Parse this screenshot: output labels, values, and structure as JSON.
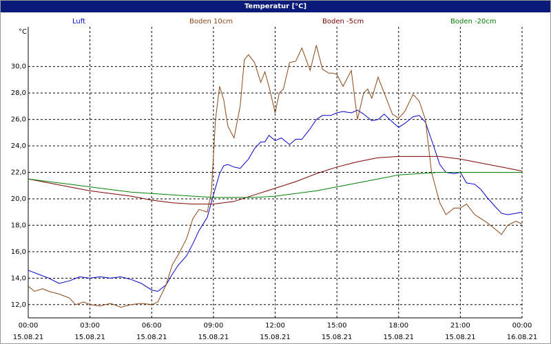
{
  "window": {
    "title": "Temperatur [°C]"
  },
  "chart_data": {
    "type": "line",
    "title": "Temperatur [°C]",
    "ylabel": "°C",
    "ylim": [
      11.0,
      33.0
    ],
    "yticks": [
      12,
      14,
      16,
      18,
      20,
      22,
      24,
      26,
      28,
      30
    ],
    "ytick_labels": [
      "12,0",
      "14,0",
      "16,0",
      "18,0",
      "20,0",
      "22,0",
      "24,0",
      "26,0",
      "28,0",
      "30,0"
    ],
    "xlim": [
      0,
      24
    ],
    "xticks": [
      0,
      3,
      6,
      9,
      12,
      15,
      18,
      21,
      24
    ],
    "xtick_times": [
      "00:00",
      "03:00",
      "06:00",
      "09:00",
      "12:00",
      "15:00",
      "18:00",
      "21:00",
      "00:00"
    ],
    "xtick_dates": [
      "15.08.21",
      "15.08.21",
      "15.08.21",
      "15.08.21",
      "15.08.21",
      "15.08.21",
      "15.08.21",
      "15.08.21",
      "16.08.21"
    ],
    "grid": true,
    "legend_position": "top",
    "series": [
      {
        "name": "Luft",
        "color": "#0000cc",
        "x": [
          0,
          0.5,
          1,
          1.5,
          2,
          2.5,
          3,
          3.5,
          4,
          4.5,
          5,
          5.5,
          6,
          6.3,
          6.7,
          7,
          7.3,
          7.7,
          8,
          8.3,
          8.7,
          9,
          9.3,
          9.5,
          9.7,
          10,
          10.3,
          10.7,
          11,
          11.3,
          11.5,
          11.7,
          12,
          12.3,
          12.7,
          13,
          13.3,
          13.7,
          14,
          14.3,
          14.7,
          15,
          15.3,
          15.7,
          16,
          16.3,
          16.7,
          17,
          17.3,
          17.7,
          18,
          18.3,
          18.7,
          19,
          19.3,
          19.7,
          20,
          20.3,
          20.7,
          21,
          21.3,
          21.7,
          22,
          22.3,
          22.7,
          23,
          23.3,
          23.7,
          24
        ],
        "y": [
          14.6,
          14.3,
          14.0,
          13.6,
          13.8,
          14.1,
          14.0,
          14.1,
          14.0,
          14.1,
          13.9,
          13.6,
          13.1,
          13.0,
          13.5,
          14.3,
          15.0,
          15.7,
          16.6,
          17.6,
          18.6,
          20.3,
          21.9,
          22.5,
          22.6,
          22.4,
          22.3,
          23.0,
          23.8,
          24.3,
          24.3,
          24.8,
          24.4,
          24.6,
          24.1,
          24.5,
          24.5,
          25.3,
          26.0,
          26.3,
          26.3,
          26.5,
          26.6,
          26.5,
          26.7,
          26.4,
          25.9,
          26.0,
          26.4,
          25.8,
          25.4,
          25.7,
          26.2,
          26.3,
          25.8,
          24.0,
          22.6,
          22.0,
          21.9,
          22.0,
          21.2,
          21.1,
          20.7,
          20.1,
          19.4,
          18.9,
          18.8,
          18.9,
          19.0
        ]
      },
      {
        "name": "Boden 10cm",
        "color": "#8b4513",
        "x": [
          0,
          0.3,
          0.7,
          1,
          1.5,
          2,
          2.3,
          2.7,
          3,
          3.5,
          4,
          4.5,
          5,
          5.5,
          6,
          6.3,
          6.7,
          7,
          7.3,
          7.7,
          8,
          8.3,
          8.7,
          8.9,
          9.1,
          9.3,
          9.5,
          9.7,
          10,
          10.3,
          10.5,
          10.7,
          11,
          11.3,
          11.5,
          11.7,
          12,
          12.2,
          12.4,
          12.7,
          13,
          13.3,
          13.7,
          14,
          14.3,
          14.6,
          14.8,
          15,
          15.3,
          15.7,
          16,
          16.3,
          16.5,
          16.7,
          17,
          17.3,
          17.7,
          18,
          18.3,
          18.7,
          19,
          19.3,
          19.6,
          20,
          20.3,
          20.7,
          21,
          21.3,
          21.7,
          22,
          22.3,
          22.7,
          23,
          23.3,
          23.7,
          24
        ],
        "y": [
          13.4,
          13.0,
          13.2,
          13.0,
          12.8,
          12.5,
          12.0,
          12.2,
          12.0,
          11.9,
          12.1,
          11.8,
          12.0,
          12.1,
          12.0,
          12.2,
          13.5,
          15.0,
          15.8,
          17.0,
          18.5,
          19.2,
          19.0,
          20.5,
          26.0,
          28.5,
          27.5,
          25.5,
          24.6,
          27.0,
          30.5,
          30.9,
          30.3,
          28.8,
          29.6,
          28.5,
          26.5,
          28.0,
          28.3,
          30.3,
          30.4,
          31.4,
          29.7,
          31.6,
          29.8,
          29.5,
          29.5,
          29.4,
          28.5,
          29.7,
          26.0,
          28.0,
          28.3,
          27.6,
          29.2,
          28.0,
          26.4,
          26.1,
          26.6,
          27.9,
          27.4,
          26.0,
          22.0,
          19.7,
          18.8,
          19.3,
          19.3,
          19.6,
          18.8,
          18.5,
          18.2,
          17.7,
          17.3,
          18.0,
          18.3,
          18.1
        ]
      },
      {
        "name": "Boden -5cm",
        "color": "#800000",
        "x": [
          0,
          1,
          2,
          3,
          4,
          5,
          6,
          7,
          8,
          9,
          10,
          11,
          12,
          13,
          14,
          15,
          16,
          17,
          18,
          19,
          20,
          21,
          22,
          23,
          24
        ],
        "y": [
          21.5,
          21.2,
          20.9,
          20.6,
          20.4,
          20.2,
          19.9,
          19.7,
          19.6,
          19.6,
          19.8,
          20.3,
          20.8,
          21.3,
          21.9,
          22.4,
          22.8,
          23.1,
          23.2,
          23.2,
          23.2,
          23.0,
          22.7,
          22.4,
          22.1
        ]
      },
      {
        "name": "Boden -20cm",
        "color": "#008000",
        "x": [
          0,
          1,
          2,
          3,
          4,
          5,
          6,
          7,
          8,
          9,
          10,
          11,
          12,
          13,
          14,
          15,
          16,
          17,
          18,
          19,
          20,
          21,
          22,
          23,
          24
        ],
        "y": [
          21.5,
          21.3,
          21.1,
          20.9,
          20.7,
          20.5,
          20.4,
          20.3,
          20.2,
          20.1,
          20.1,
          20.1,
          20.2,
          20.4,
          20.6,
          20.9,
          21.2,
          21.5,
          21.8,
          21.9,
          22.0,
          22.0,
          22.0,
          22.0,
          22.0
        ]
      }
    ]
  }
}
